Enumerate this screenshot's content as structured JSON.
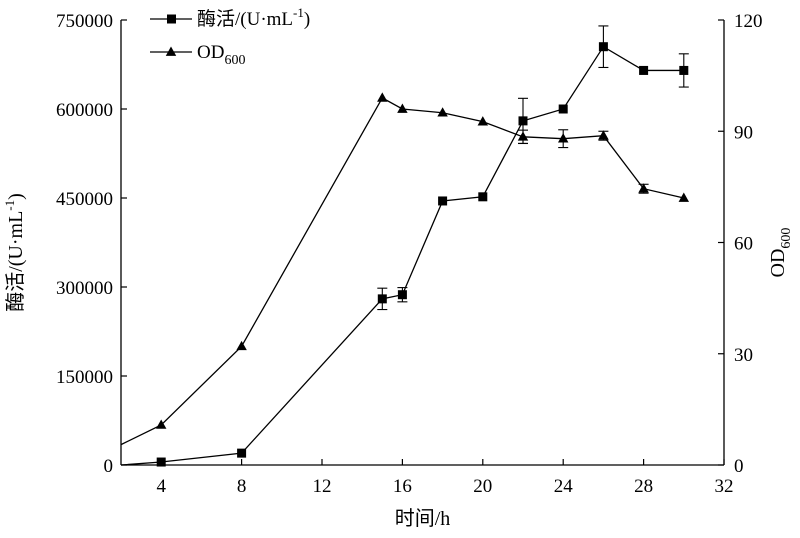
{
  "chart_data": {
    "type": "line",
    "xlabel": "时间/h",
    "ylabel_left_main": "酶活/(U·mL",
    "ylabel_left_sup": "-1",
    "ylabel_left_tail": ")",
    "ylabel_right_main": "OD",
    "ylabel_right_sub": "600",
    "xlim": [
      2,
      32
    ],
    "ylim_left": [
      0,
      750000
    ],
    "ylim_right": [
      0,
      120
    ],
    "x_ticks": [
      4,
      8,
      12,
      16,
      20,
      24,
      28,
      32
    ],
    "y_left_ticks": [
      0,
      150000,
      300000,
      450000,
      600000,
      750000
    ],
    "y_right_ticks": [
      0,
      30,
      60,
      90,
      120
    ],
    "grid": false,
    "legend_position": "top-center",
    "series": [
      {
        "name_main": "酶活/(U·mL",
        "name_sup": "-1",
        "name_tail": ")",
        "axis": "left",
        "marker": "square",
        "x": [
          2,
          4,
          8,
          15,
          16,
          18,
          20,
          22,
          24,
          26,
          28,
          30
        ],
        "y": [
          0,
          5000,
          20000,
          280000,
          287000,
          445000,
          452000,
          580000,
          600000,
          705000,
          665000,
          665000
        ],
        "err": [
          0,
          0,
          0,
          18000,
          12000,
          0,
          0,
          38000,
          0,
          35000,
          0,
          28000
        ]
      },
      {
        "name_main": "OD",
        "name_sub": "600",
        "axis": "right",
        "marker": "triangle",
        "x": [
          2,
          4,
          8,
          15,
          16,
          18,
          20,
          22,
          24,
          26,
          28,
          30
        ],
        "y": [
          5.5,
          10.8,
          32.0,
          99.0,
          96.0,
          95.0,
          92.6,
          88.5,
          88.0,
          88.8,
          74.5,
          72.0
        ],
        "err": [
          0,
          0,
          0,
          0,
          0,
          0,
          0,
          1.8,
          2.4,
          1.2,
          1.2,
          0
        ]
      }
    ]
  }
}
